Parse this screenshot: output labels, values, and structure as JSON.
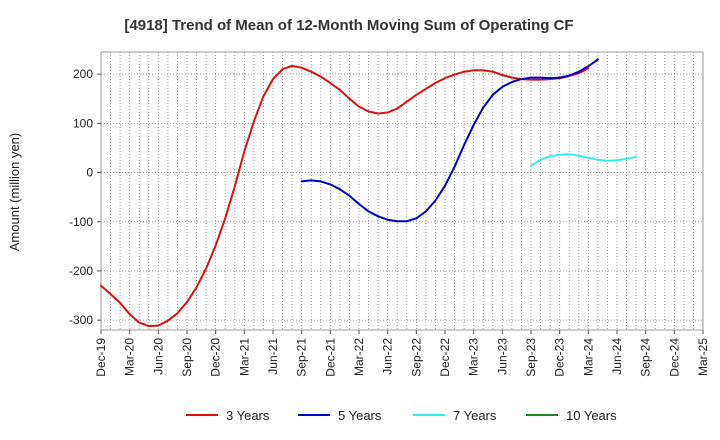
{
  "chart_data": {
    "type": "line",
    "title": "[4918]  Trend of Mean of 12-Month Moving Sum of Operating CF",
    "xlabel": "",
    "ylabel": "Amount (million yen)",
    "ylim": [
      -320,
      245
    ],
    "yticks": [
      -300,
      -200,
      -100,
      0,
      100,
      200
    ],
    "grid": true,
    "legend_position": "bottom",
    "x_tick_labels": [
      "Dec-19",
      "Mar-20",
      "Jun-20",
      "Sep-20",
      "Dec-20",
      "Mar-21",
      "Jun-21",
      "Sep-21",
      "Dec-21",
      "Mar-22",
      "Jun-22",
      "Sep-22",
      "Dec-22",
      "Mar-23",
      "Jun-23",
      "Sep-23",
      "Dec-23",
      "Mar-24",
      "Jun-24",
      "Sep-24",
      "Dec-24",
      "Mar-25"
    ],
    "x_start": "Dec-19",
    "x_end": "Mar-25",
    "series": [
      {
        "name": "3 Years",
        "color": "#dd1111",
        "start": "Dec-19",
        "values": [
          -230,
          -247,
          -265,
          -288,
          -305,
          -312,
          -311,
          -301,
          -286,
          -263,
          -233,
          -195,
          -148,
          -93,
          -28,
          43,
          104,
          155,
          190,
          210,
          217,
          213,
          205,
          195,
          182,
          168,
          150,
          134,
          124,
          120,
          122,
          130,
          144,
          158,
          170,
          182,
          192,
          199,
          205,
          208,
          208,
          205,
          198,
          193,
          190,
          189,
          189,
          190,
          192,
          196,
          202,
          212
        ]
      },
      {
        "name": "5 Years",
        "color": "#0000cc",
        "start": "Sep-21",
        "values": [
          -18,
          -16,
          -18,
          -24,
          -34,
          -47,
          -64,
          -79,
          -89,
          -96,
          -99,
          -99,
          -93,
          -79,
          -57,
          -27,
          12,
          56,
          97,
          132,
          158,
          174,
          184,
          190,
          193,
          193,
          192,
          193,
          197,
          205,
          216,
          230
        ]
      },
      {
        "name": "7 Years",
        "color": "#33eeee",
        "start": "Sep-23",
        "values": [
          14,
          26,
          33,
          36,
          37,
          34,
          30,
          26,
          24,
          25,
          28,
          32
        ]
      },
      {
        "name": "10 Years",
        "color": "#228822",
        "start": "Sep-24",
        "values": []
      }
    ]
  }
}
